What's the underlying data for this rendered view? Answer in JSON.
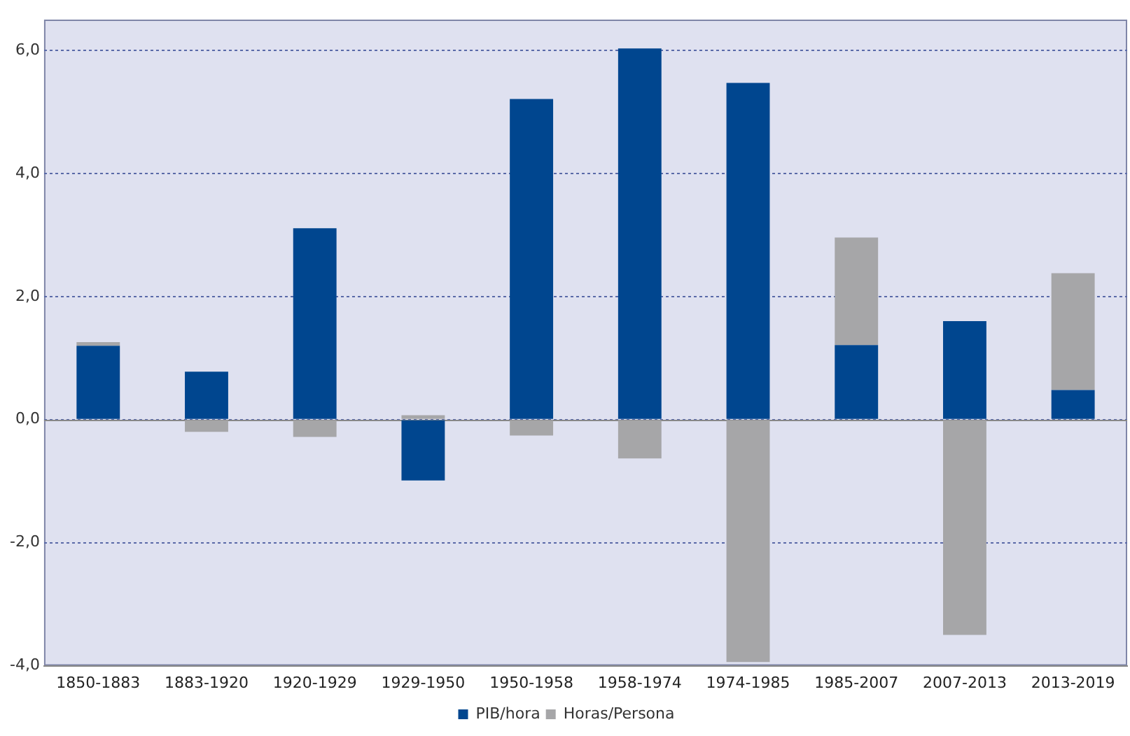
{
  "chart_data": {
    "type": "bar",
    "stacked": true,
    "categories": [
      "1850-1883",
      "1883-1920",
      "1920-1929",
      "1929-1950",
      "1950-1958",
      "1958-1974",
      "1974-1985",
      "1985-2007",
      "2007-2013",
      "2013-2019"
    ],
    "series": [
      {
        "name": "PIB/hora",
        "color": "#00468f",
        "values": [
          1.2,
          0.78,
          3.11,
          -0.99,
          5.21,
          6.03,
          5.47,
          1.21,
          1.6,
          0.48
        ]
      },
      {
        "name": "Horas/Persona",
        "color": "#a6a6a8",
        "values": [
          0.06,
          -0.2,
          -0.28,
          0.07,
          -0.26,
          -0.63,
          -3.94,
          1.75,
          -3.5,
          1.9
        ]
      }
    ],
    "ylim": [
      -4,
      6.5
    ],
    "yticks": [
      {
        "value": -4,
        "label": "-4,0"
      },
      {
        "value": -2,
        "label": "-2,0"
      },
      {
        "value": 0,
        "label": "0,0"
      },
      {
        "value": 2,
        "label": "2,0"
      },
      {
        "value": 4,
        "label": "4,0"
      },
      {
        "value": 6,
        "label": "6,0"
      }
    ],
    "grid": "y",
    "legend": "bottom"
  }
}
